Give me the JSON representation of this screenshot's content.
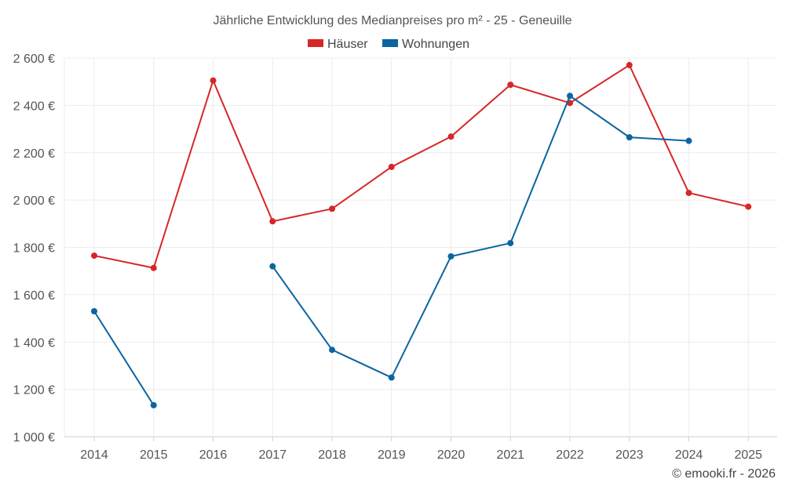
{
  "chart_data": {
    "type": "line",
    "title": "Jährliche Entwicklung des Medianpreises pro m² - 25 - Geneuille",
    "categories": [
      "2014",
      "2015",
      "2016",
      "2017",
      "2018",
      "2019",
      "2020",
      "2021",
      "2022",
      "2023",
      "2024",
      "2025"
    ],
    "series": [
      {
        "name": "Häuser",
        "color": "#d62728",
        "values": [
          1765,
          1713,
          2505,
          1910,
          1963,
          2140,
          2268,
          2487,
          2410,
          2570,
          2030,
          1972
        ]
      },
      {
        "name": "Wohnungen",
        "color": "#0b65a0",
        "values": [
          1530,
          1133,
          null,
          1720,
          1367,
          1250,
          1762,
          1818,
          2440,
          2265,
          2250,
          null
        ]
      }
    ],
    "y_ticks": [
      "1 000 €",
      "1 200 €",
      "1 400 €",
      "1 600 €",
      "1 800 €",
      "2 000 €",
      "2 200 €",
      "2 400 €",
      "2 600 €"
    ],
    "ylim": [
      1000,
      2600
    ],
    "xlabel": "",
    "ylabel": "",
    "grid": true,
    "legend_position": "top-center"
  },
  "credit": "© emooki.fr - 2026"
}
